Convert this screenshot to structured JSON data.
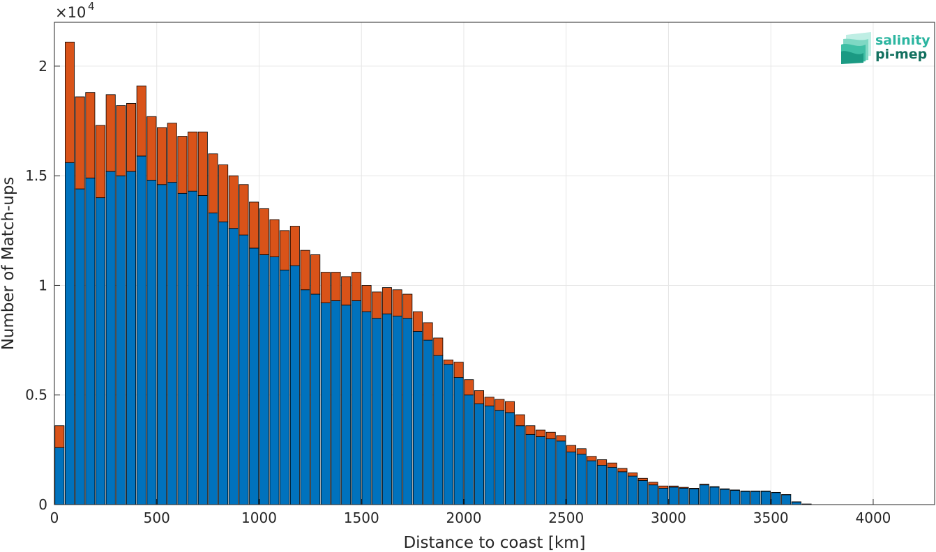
{
  "chart_data": {
    "type": "bar",
    "stacked": true,
    "xlabel": "Distance to coast [km]",
    "ylabel": "Number of Match-ups",
    "y_multiplier_base": "×10",
    "y_multiplier_exponent": "4",
    "y_scale": 10000,
    "xlim": [
      0,
      4300
    ],
    "ylim": [
      0,
      2.2
    ],
    "xticks": [
      0,
      500,
      1000,
      1500,
      2000,
      2500,
      3000,
      3500,
      4000
    ],
    "yticks": [
      0,
      0.5,
      1,
      1.5,
      2
    ],
    "ytick_labels": [
      "0",
      "0.5",
      "1",
      "1.5",
      "2"
    ],
    "grid": true,
    "bin_width_km": 50,
    "x": [
      25,
      75,
      125,
      175,
      225,
      275,
      325,
      375,
      425,
      475,
      525,
      575,
      625,
      675,
      725,
      775,
      825,
      875,
      925,
      975,
      1025,
      1075,
      1125,
      1175,
      1225,
      1275,
      1325,
      1375,
      1425,
      1475,
      1525,
      1575,
      1625,
      1675,
      1725,
      1775,
      1825,
      1875,
      1925,
      1975,
      2025,
      2075,
      2125,
      2175,
      2225,
      2275,
      2325,
      2375,
      2425,
      2475,
      2525,
      2575,
      2625,
      2675,
      2725,
      2775,
      2825,
      2875,
      2925,
      2975,
      3025,
      3075,
      3125,
      3175,
      3225,
      3275,
      3325,
      3375,
      3425,
      3475,
      3525,
      3575,
      3625,
      3675,
      3725,
      3775,
      3825,
      3875,
      3925,
      3975,
      4025,
      4075,
      4125,
      4175,
      4225,
      4275
    ],
    "series": [
      {
        "color": "#0072BD",
        "values": [
          0.26,
          1.56,
          1.44,
          1.49,
          1.4,
          1.52,
          1.5,
          1.52,
          1.59,
          1.48,
          1.46,
          1.47,
          1.42,
          1.43,
          1.41,
          1.33,
          1.29,
          1.26,
          1.23,
          1.17,
          1.14,
          1.13,
          1.07,
          1.09,
          0.98,
          0.96,
          0.92,
          0.93,
          0.91,
          0.93,
          0.88,
          0.85,
          0.87,
          0.86,
          0.85,
          0.79,
          0.75,
          0.68,
          0.64,
          0.58,
          0.5,
          0.46,
          0.45,
          0.43,
          0.42,
          0.36,
          0.32,
          0.31,
          0.3,
          0.29,
          0.24,
          0.23,
          0.2,
          0.18,
          0.17,
          0.15,
          0.13,
          0.11,
          0.09,
          0.075,
          0.08,
          0.075,
          0.072,
          0.09,
          0.08,
          0.07,
          0.065,
          0.06,
          0.06,
          0.06,
          0.055,
          0.045,
          0.012,
          0.003,
          0,
          0,
          0,
          0,
          0,
          0,
          0,
          0,
          0,
          0,
          0,
          0
        ]
      },
      {
        "color": "#D95319",
        "values": [
          0.1,
          0.55,
          0.42,
          0.39,
          0.33,
          0.35,
          0.32,
          0.31,
          0.32,
          0.29,
          0.26,
          0.27,
          0.26,
          0.27,
          0.29,
          0.27,
          0.26,
          0.24,
          0.23,
          0.21,
          0.21,
          0.17,
          0.18,
          0.18,
          0.18,
          0.18,
          0.14,
          0.13,
          0.13,
          0.13,
          0.12,
          0.12,
          0.12,
          0.12,
          0.11,
          0.09,
          0.08,
          0.08,
          0.02,
          0.07,
          0.07,
          0.06,
          0.04,
          0.05,
          0.05,
          0.05,
          0.04,
          0.03,
          0.03,
          0.025,
          0.03,
          0.025,
          0.02,
          0.025,
          0.02,
          0.015,
          0.015,
          0.01,
          0.012,
          0.01,
          0.005,
          0.004,
          0.003,
          0.003,
          0.002,
          0.002,
          0.002,
          0.002,
          0.002,
          0.002,
          0.001,
          0.001,
          0.001,
          0,
          0,
          0,
          0,
          0,
          0,
          0,
          0,
          0,
          0,
          0,
          0,
          0
        ]
      }
    ]
  },
  "logo": {
    "line1": "salinity",
    "line2": "pi-mep",
    "line1_color": "#2bb5a0",
    "line2_color": "#12705f"
  }
}
